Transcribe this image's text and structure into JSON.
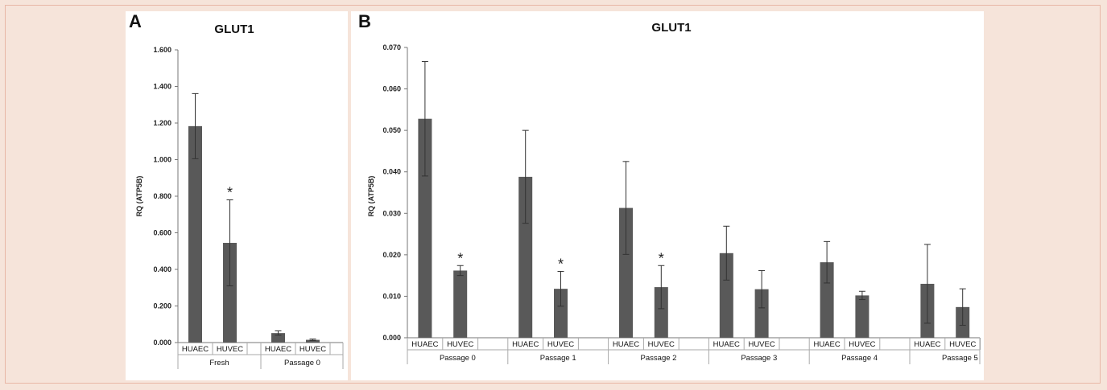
{
  "chart_data": [
    {
      "type": "bar",
      "panel_label": "A",
      "title": "GLUT1",
      "ylabel": "RQ (ATP5B)",
      "ylim": [
        0,
        1.6
      ],
      "yticks": [
        "0.000",
        "0.200",
        "0.400",
        "0.600",
        "0.800",
        "1.000",
        "1.200",
        "1.400",
        "1.600"
      ],
      "groups": [
        {
          "label": "Fresh",
          "categories": [
            "HUAEC",
            "HUVEC"
          ],
          "values": [
            1.183,
            0.545
          ],
          "errors": [
            0.178,
            0.235
          ],
          "significant": [
            false,
            true
          ]
        },
        {
          "label": "Passage 0",
          "categories": [
            "HUAEC",
            "HUVEC"
          ],
          "values": [
            0.052,
            0.015
          ],
          "errors": [
            0.012,
            0.004
          ],
          "significant": [
            false,
            false
          ]
        }
      ],
      "bar_color": "#595959",
      "significance_marker": "*"
    },
    {
      "type": "bar",
      "panel_label": "B",
      "title": "GLUT1",
      "ylabel": "RQ (ATP5B)",
      "ylim": [
        0,
        0.07
      ],
      "yticks": [
        "0.000",
        "0.010",
        "0.020",
        "0.030",
        "0.040",
        "0.050",
        "0.060",
        "0.070"
      ],
      "groups": [
        {
          "label": "Passage 0",
          "categories": [
            "HUAEC",
            "HUVEC"
          ],
          "values": [
            0.0528,
            0.0162
          ],
          "errors": [
            0.0138,
            0.0012
          ],
          "significant": [
            false,
            true
          ]
        },
        {
          "label": "Passage 1",
          "categories": [
            "HUAEC",
            "HUVEC"
          ],
          "values": [
            0.0388,
            0.0118
          ],
          "errors": [
            0.0112,
            0.0042
          ],
          "significant": [
            false,
            true
          ]
        },
        {
          "label": "Passage 2",
          "categories": [
            "HUAEC",
            "HUVEC"
          ],
          "values": [
            0.0313,
            0.0122
          ],
          "errors": [
            0.0112,
            0.0052
          ],
          "significant": [
            false,
            true
          ]
        },
        {
          "label": "Passage 3",
          "categories": [
            "HUAEC",
            "HUVEC"
          ],
          "values": [
            0.0204,
            0.0117
          ],
          "errors": [
            0.0065,
            0.0045
          ],
          "significant": [
            false,
            false
          ]
        },
        {
          "label": "Passage 4",
          "categories": [
            "HUAEC",
            "HUVEC"
          ],
          "values": [
            0.0182,
            0.0102
          ],
          "errors": [
            0.005,
            0.001
          ],
          "significant": [
            false,
            false
          ]
        },
        {
          "label": "Passage 5",
          "categories": [
            "HUAEC",
            "HUVEC"
          ],
          "values": [
            0.013,
            0.0074
          ],
          "errors": [
            0.0095,
            0.0044
          ],
          "significant": [
            false,
            false
          ]
        }
      ],
      "bar_color": "#595959",
      "significance_marker": "*"
    }
  ]
}
